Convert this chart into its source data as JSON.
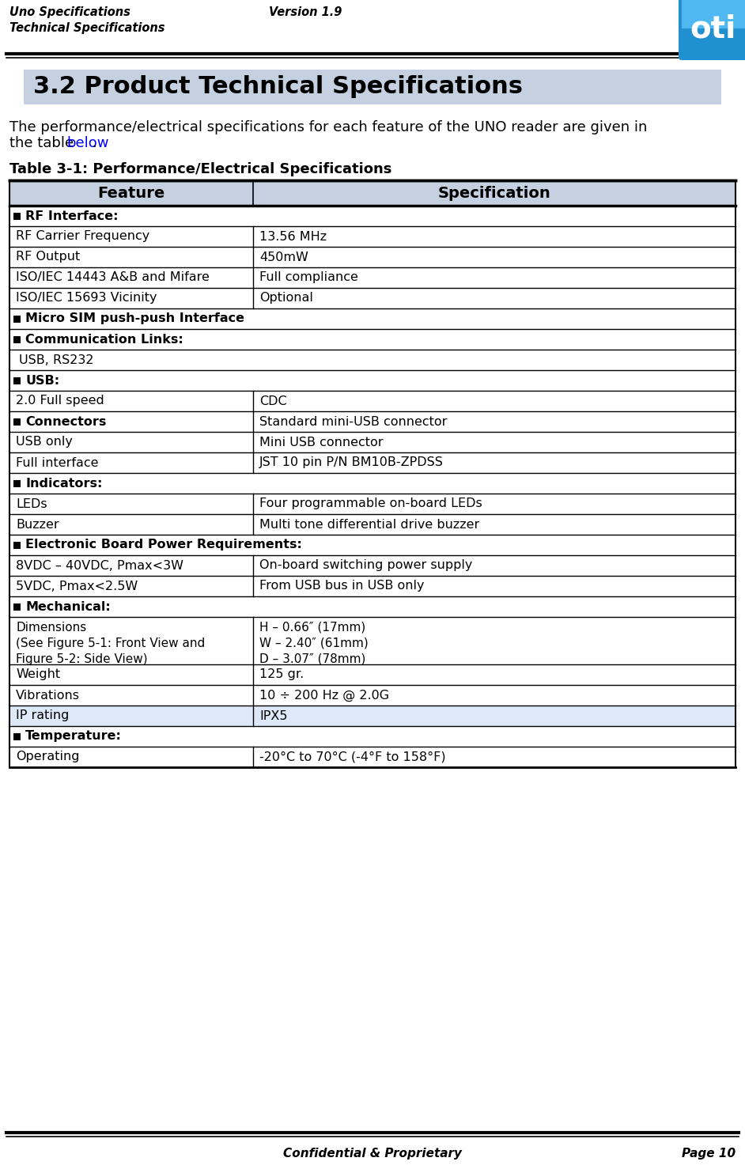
{
  "header_left_line1": "Uno Specifications",
  "header_left_line2": "Technical Specifications",
  "header_center": "Version 1.9",
  "section_title": "3.2 Product Technical Specifications",
  "section_title_bg": "#c5d0e0",
  "intro_text_line1": "The performance/electrical specifications for each feature of the UNO reader are given in",
  "intro_text_line2_pre": "the table ",
  "intro_link": "below",
  "intro_text_line2_post": ".",
  "table_title": "Table 3-1: Performance/Electrical Specifications",
  "col1_header": "Feature",
  "col2_header": "Specification",
  "header_bg": "#c5d0e0",
  "footer_center": "Confidential & Proprietary",
  "footer_right": "Page 10",
  "table_rows": [
    {
      "type": "section",
      "col1": "RF Interface:",
      "col2": ""
    },
    {
      "type": "data",
      "col1": "RF Carrier Frequency",
      "col2": "13.56 MHz"
    },
    {
      "type": "data",
      "col1": "RF Output",
      "col2": "450mW"
    },
    {
      "type": "data",
      "col1": "ISO/IEC 14443 A&B and Mifare",
      "col2": "Full compliance"
    },
    {
      "type": "data",
      "col1": "ISO/IEC 15693 Vicinity",
      "col2": "Optional"
    },
    {
      "type": "section",
      "col1": "Micro SIM push-push Interface",
      "col2": ""
    },
    {
      "type": "section",
      "col1": "Communication Links:",
      "col2": ""
    },
    {
      "type": "data_span",
      "col1": "USB, RS232",
      "col2": ""
    },
    {
      "type": "section",
      "col1": "USB:",
      "col2": ""
    },
    {
      "type": "data",
      "col1": "2.0 Full speed",
      "col2": "CDC"
    },
    {
      "type": "section_data",
      "col1": "Connectors",
      "col2": "Standard mini-USB connector"
    },
    {
      "type": "data",
      "col1": "USB only",
      "col2": "Mini USB connector"
    },
    {
      "type": "data",
      "col1": "Full interface",
      "col2": "JST 10 pin P/N BM10B-ZPDSS"
    },
    {
      "type": "section",
      "col1": "Indicators:",
      "col2": ""
    },
    {
      "type": "data",
      "col1": "LEDs",
      "col2": "Four programmable on-board LEDs"
    },
    {
      "type": "data",
      "col1": "Buzzer",
      "col2": "Multi tone differential drive buzzer"
    },
    {
      "type": "section",
      "col1": "Electronic Board Power Requirements:",
      "col2": ""
    },
    {
      "type": "data",
      "col1": "8VDC – 40VDC, Pmax<3W",
      "col2": "On-board switching power supply"
    },
    {
      "type": "data",
      "col1": "5VDC, Pmax<2.5W",
      "col2": "From USB bus in USB only"
    },
    {
      "type": "section",
      "col1": "Mechanical:",
      "col2": ""
    },
    {
      "type": "data_multi",
      "col1": "Dimensions\n(See Figure 5-1: Front View and\n Figure 5-2: Side View)",
      "col2": "H – 0.66″ (17mm)\nW – 2.40″ (61mm)\nD – 3.07″ (78mm)"
    },
    {
      "type": "data",
      "col1": "Weight",
      "col2": "125 gr."
    },
    {
      "type": "data",
      "col1": "Vibrations",
      "col2": "10 ÷ 200 Hz @ 2.0G"
    },
    {
      "type": "data_hilight",
      "col1": "IP rating",
      "col2": "IPX5"
    },
    {
      "type": "section",
      "col1": "Temperature:",
      "col2": ""
    },
    {
      "type": "data",
      "col1": "Operating",
      "col2": "-20°C to 70°C (-4°F to 158°F)"
    }
  ],
  "bg_color": "#ffffff",
  "link_color": "#0000ff",
  "hilight_bg": "#dde8f8"
}
